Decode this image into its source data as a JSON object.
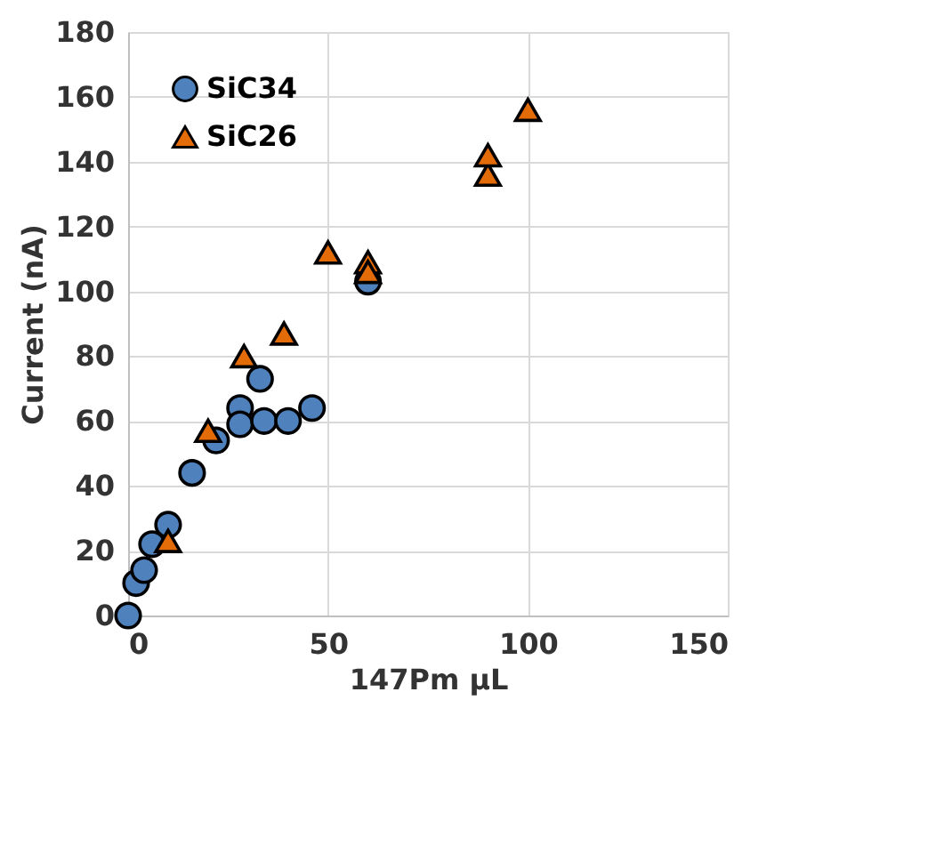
{
  "chart_data": {
    "type": "scatter",
    "xlabel": "147Pm µL",
    "ylabel": "Current (nA)",
    "xlim": [
      0,
      150
    ],
    "xticks": [
      0,
      50,
      100,
      150
    ],
    "ylim": [
      0,
      180
    ],
    "yticks": [
      0,
      20,
      40,
      60,
      80,
      100,
      120,
      140,
      160,
      180
    ],
    "grid": true,
    "legend": "top left",
    "series": [
      {
        "name": "SiC34",
        "color": "#4f81bd",
        "marker": "circle",
        "x": [
          0,
          2,
          4,
          6,
          10,
          16,
          22,
          28,
          28,
          33,
          34,
          40,
          46,
          60
        ],
        "values": [
          0,
          10,
          14,
          22,
          28,
          44,
          54,
          64,
          59,
          73,
          60,
          60,
          64,
          103
        ]
      },
      {
        "name": "SiC26",
        "color": "#e36c09",
        "marker": "triangle",
        "x": [
          10,
          20,
          29,
          39,
          50,
          60,
          60,
          90,
          90,
          100
        ],
        "values": [
          23,
          57,
          80,
          87,
          112,
          109,
          106,
          136,
          142,
          156
        ]
      }
    ]
  }
}
